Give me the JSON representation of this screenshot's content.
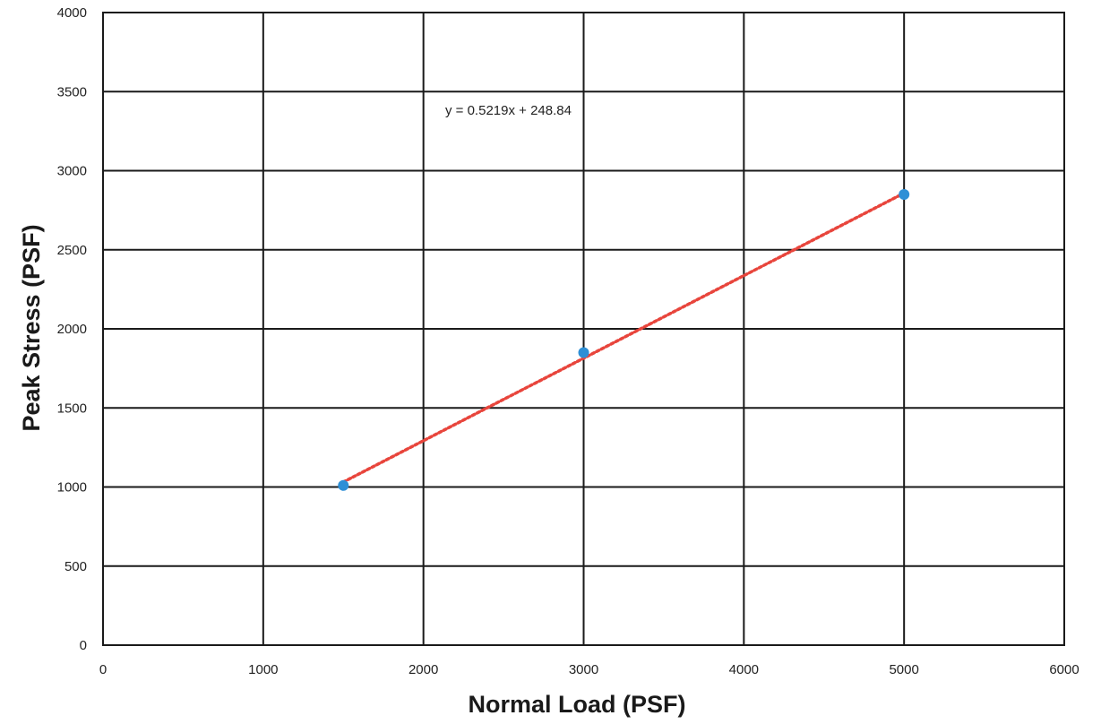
{
  "chart_data": {
    "type": "scatter",
    "xlabel": "Normal Load (PSF)",
    "ylabel": "Peak Stress (PSF)",
    "xlim": [
      0,
      6000
    ],
    "ylim": [
      0,
      4000
    ],
    "x_ticks": [
      0,
      1000,
      2000,
      3000,
      4000,
      5000,
      6000
    ],
    "y_ticks": [
      0,
      500,
      1000,
      1500,
      2000,
      2500,
      3000,
      3500,
      4000
    ],
    "grid": true,
    "legend": "none",
    "series": [
      {
        "x": [
          1500,
          3000,
          5000
        ],
        "y": [
          1010,
          1850,
          2850
        ],
        "color": "#2e8fd6"
      }
    ],
    "trendline": {
      "type": "linear",
      "slope": 0.5219,
      "intercept": 248.84,
      "equation": "y = 0.5219x + 248.84",
      "x_range": [
        1500,
        5000
      ],
      "color": "#e8453c",
      "style": "dotted"
    }
  }
}
